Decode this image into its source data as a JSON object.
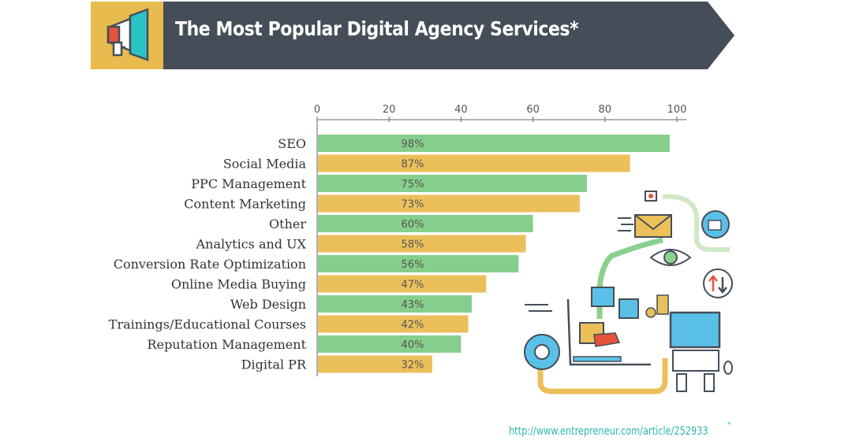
{
  "header": {
    "title": "The Most Popular Digital Agency Services*",
    "icon": "megaphone-icon"
  },
  "colors": {
    "banner_dark": "#454e58",
    "banner_yellow": "#e8bb4f",
    "bar_green": "#86ce8c",
    "bar_yellow": "#ebc05a",
    "source_teal": "#2bb8b0"
  },
  "chart_data": {
    "type": "bar",
    "orientation": "horizontal",
    "title": "The Most Popular Digital Agency Services*",
    "xlabel": "",
    "ylabel": "",
    "xlim": [
      0,
      100
    ],
    "x_ticks": [
      0,
      20,
      40,
      60,
      80,
      100
    ],
    "categories": [
      "SEO",
      "Social Media",
      "PPC Management",
      "Content Marketing",
      "Other",
      "Analytics and UX",
      "Conversion Rate Optimization",
      "Online Media Buying",
      "Web Design",
      "Trainings/Educational Courses",
      "Reputation Management",
      "Digital PR"
    ],
    "values": [
      98,
      87,
      75,
      73,
      60,
      58,
      56,
      47,
      43,
      42,
      40,
      32
    ],
    "value_labels": [
      "98%",
      "87%",
      "75%",
      "73%",
      "60%",
      "58%",
      "56%",
      "47%",
      "43%",
      "42%",
      "40%",
      "32%"
    ],
    "bar_colors": [
      "green",
      "yellow",
      "green",
      "yellow",
      "green",
      "yellow",
      "green",
      "yellow",
      "green",
      "yellow",
      "green",
      "yellow"
    ],
    "grid": false,
    "legend": "none"
  },
  "footer": {
    "source": "http://www.entrepreneur.com/article/252933",
    "source_mark": "*"
  }
}
